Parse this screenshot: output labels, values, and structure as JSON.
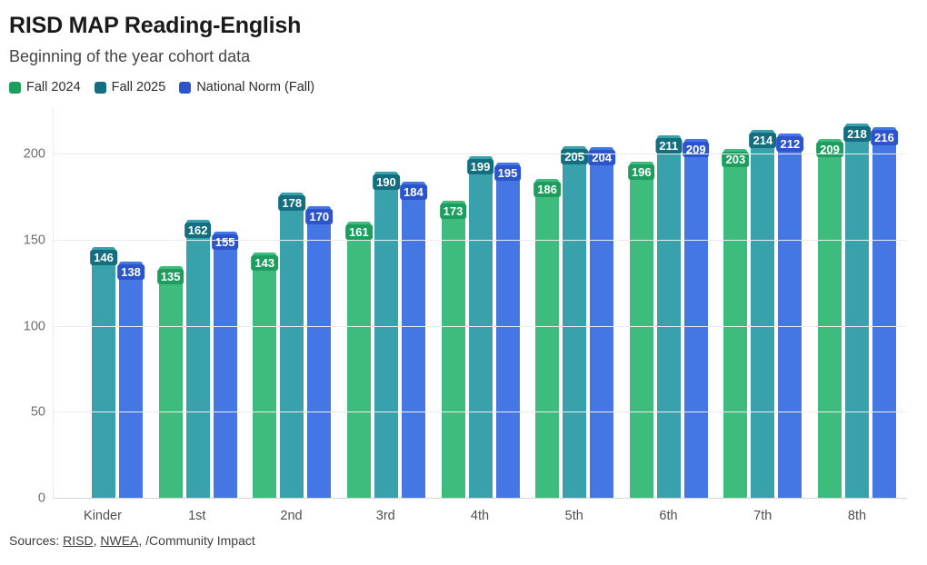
{
  "title": "RISD MAP Reading-English",
  "subtitle": "Beginning of the year cohort data",
  "chart_data": {
    "type": "bar",
    "title": "RISD MAP Reading-English",
    "subtitle": "Beginning of the year cohort data",
    "categories": [
      "Kinder",
      "1st",
      "2nd",
      "3rd",
      "4th",
      "5th",
      "6th",
      "7th",
      "8th"
    ],
    "series": [
      {
        "name": "Fall 2024",
        "color": "#3dbc7e",
        "label_bg": "#1e9e5e",
        "values": [
          null,
          135,
          143,
          161,
          173,
          186,
          196,
          203,
          209
        ]
      },
      {
        "name": "Fall 2025",
        "color": "#39a1ac",
        "label_bg": "#156e80",
        "values": [
          146,
          162,
          178,
          190,
          199,
          205,
          211,
          214,
          218
        ]
      },
      {
        "name": "National Norm (Fall)",
        "color": "#4477e3",
        "label_bg": "#2c55cc",
        "values": [
          138,
          155,
          170,
          184,
          195,
          204,
          209,
          212,
          216
        ]
      }
    ],
    "xlabel": "",
    "ylabel": "",
    "ylim": [
      0,
      227
    ],
    "y_ticks": [
      0,
      50,
      100,
      150,
      200
    ],
    "grid": "horizontal",
    "legend_position": "top",
    "value_labels": "inside-top",
    "colors": {
      "grid": "#ececec",
      "baseline": "#d6d6d6",
      "axis_text": "#6e6e6e"
    }
  },
  "footer": {
    "prefix": "Sources: ",
    "link1": "RISD",
    "sep1": ", ",
    "link2": "NWEA",
    "sep2": ", ",
    "credit": "/Community Impact"
  }
}
